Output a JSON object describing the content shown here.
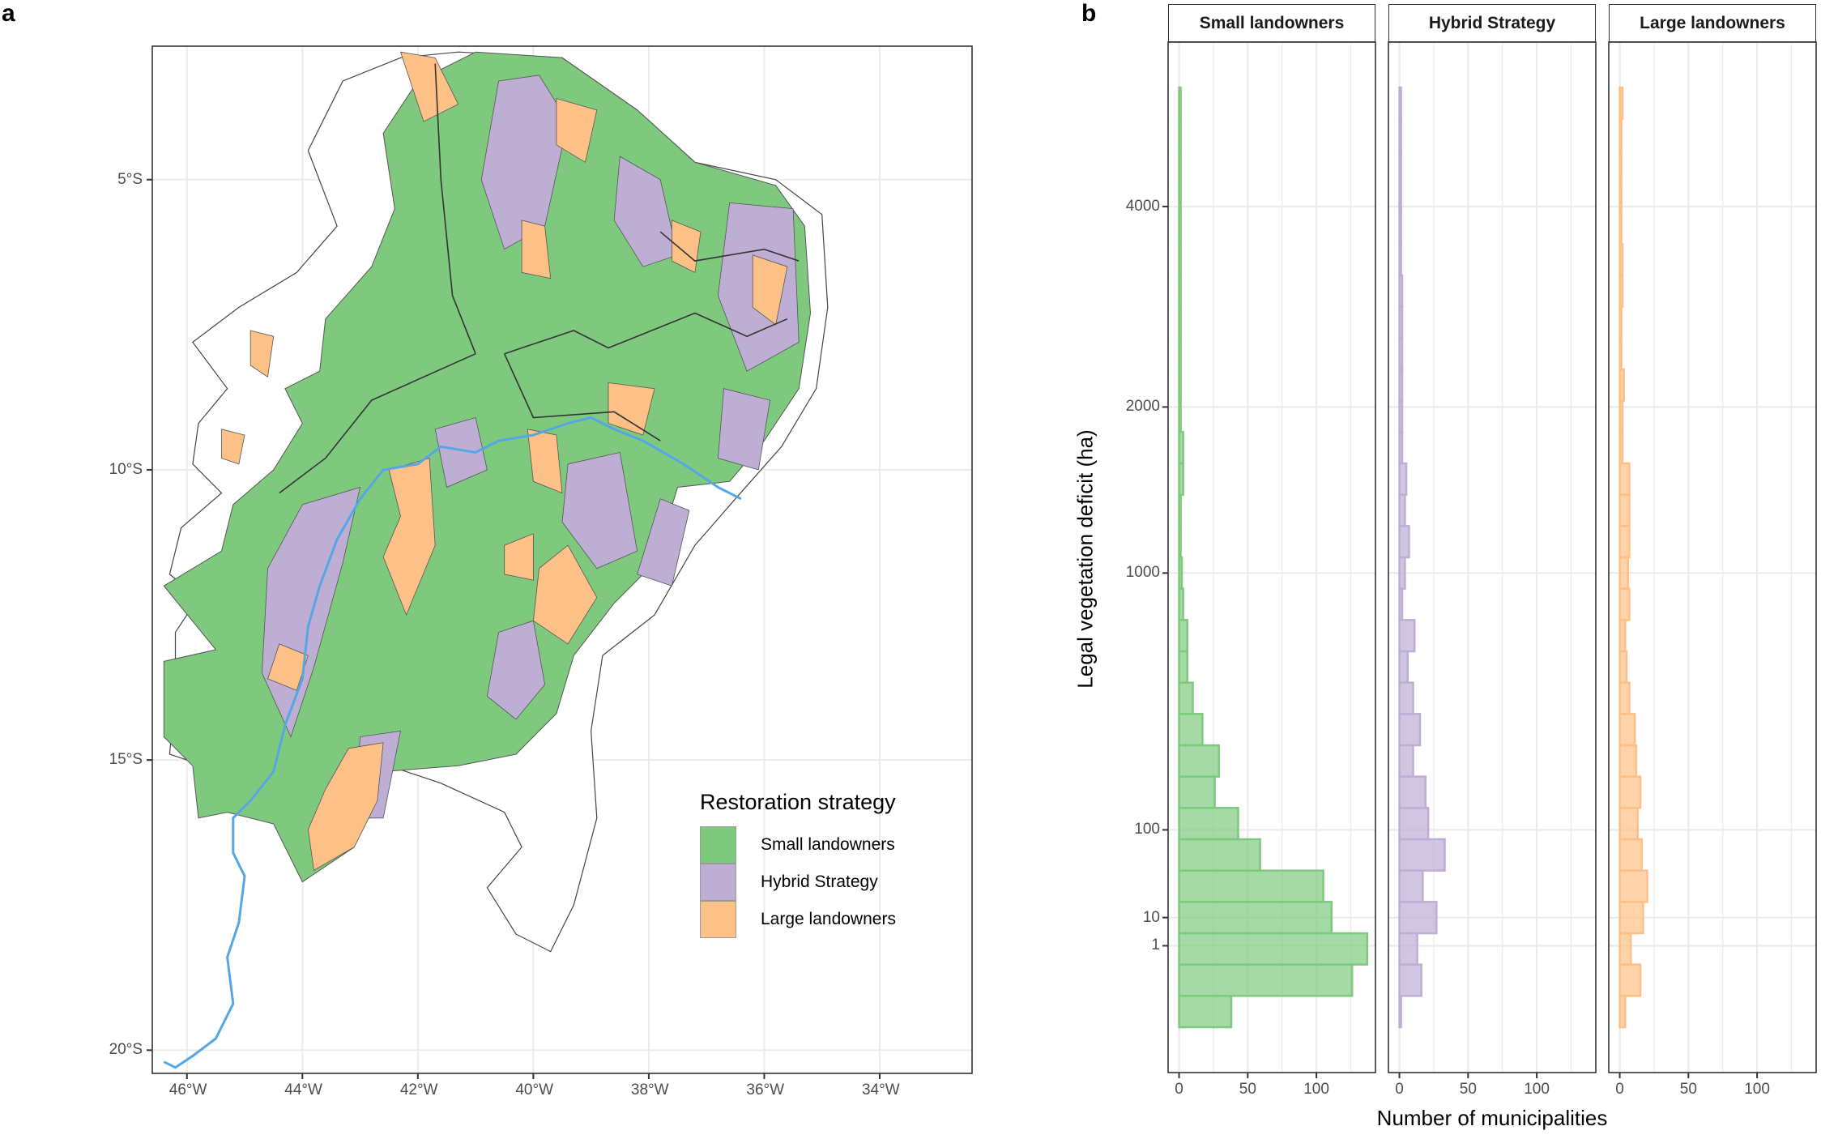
{
  "panel_labels": {
    "a": "a",
    "b": "b"
  },
  "colors": {
    "small": "#7fc97f",
    "hybrid": "#beaed4",
    "large": "#fdc086",
    "river": "#56a6e6",
    "border": "#555555",
    "grid": "#ebebeb"
  },
  "chart_data": [
    {
      "type": "map",
      "panel": "a",
      "title": "",
      "x_ticks": [
        "46°W",
        "44°W",
        "42°W",
        "40°W",
        "38°W",
        "36°W",
        "34°W"
      ],
      "x_tick_values": [
        -46,
        -44,
        -42,
        -40,
        -38,
        -36,
        -34
      ],
      "y_ticks": [
        "5°S",
        "10°S",
        "15°S",
        "20°S"
      ],
      "y_tick_values": [
        -5,
        -10,
        -15,
        -20
      ],
      "xlim": [
        -46.6,
        -32.4
      ],
      "ylim": [
        -20.4,
        -2.7
      ],
      "grid": true,
      "legend": {
        "title": "Restoration strategy",
        "placement": "bottom-right",
        "entries": [
          {
            "label": "Small landowners",
            "color_key": "small"
          },
          {
            "label": "Hybrid Strategy",
            "color_key": "hybrid"
          },
          {
            "label": "Large landowners",
            "color_key": "large"
          }
        ]
      },
      "description": "Municipalities of north-eastern Brazil coloured by restoration strategy; blue line is the São Francisco river"
    },
    {
      "type": "bar",
      "orientation": "horizontal",
      "panel": "b",
      "xlabel": "Number of municipalities",
      "ylabel": "Legal vegetation deficit (ha)",
      "x_ticks": [
        0,
        50,
        100
      ],
      "xlim": [
        -8,
        143
      ],
      "y_ticks": [
        "1",
        "10",
        "100",
        "1000",
        "2000",
        "4000"
      ],
      "y_tick_bins": [
        3.1,
        4.0,
        6.8,
        15.0,
        20.3,
        26.7
      ],
      "bins_note": "30 equal-height bins ordered bottom (smallest deficit) to top (largest deficit)",
      "grid": true,
      "series": [
        {
          "name": "Small landowners",
          "color_key": "small",
          "values": [
            38,
            126,
            137,
            111,
            105,
            59,
            43,
            26,
            29,
            17,
            10,
            6,
            6,
            3,
            2,
            1,
            1,
            3,
            3,
            1,
            1,
            1,
            1,
            1,
            1,
            1,
            1,
            1,
            1,
            1
          ]
        },
        {
          "name": "Hybrid Strategy",
          "color_key": "hybrid",
          "values": [
            1,
            16,
            13,
            27,
            17,
            33,
            21,
            19,
            10,
            15,
            10,
            6,
            11,
            2,
            4,
            7,
            4,
            5,
            2,
            2,
            2,
            2,
            2,
            2,
            1,
            1,
            1,
            1,
            1,
            1
          ]
        },
        {
          "name": "Large landowners",
          "color_key": "large",
          "values": [
            4,
            15,
            8,
            17,
            20,
            16,
            13,
            15,
            12,
            11,
            7,
            5,
            4,
            7,
            6,
            7,
            7,
            7,
            2,
            2,
            3,
            1,
            1,
            2,
            2,
            1,
            1,
            1,
            1,
            2
          ]
        }
      ]
    }
  ]
}
